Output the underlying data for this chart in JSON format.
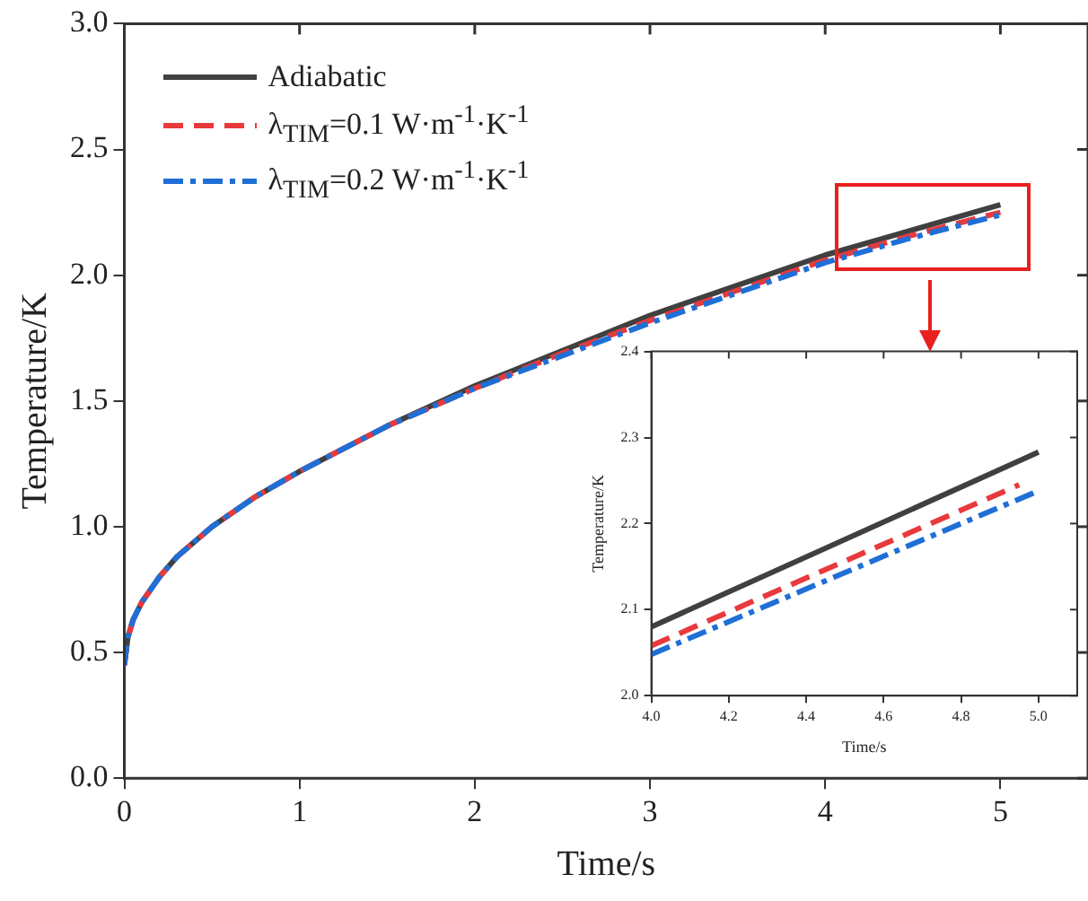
{
  "chart_data": [
    {
      "type": "line",
      "xlabel": "Time/s",
      "ylabel": "Temperature/K",
      "xlim": [
        0,
        5.5
      ],
      "xticks": [
        0,
        1,
        2,
        3,
        4,
        5
      ],
      "ylim": [
        0,
        3
      ],
      "yticks": [
        {
          "value": 0,
          "label": "0.0"
        },
        {
          "value": 0.5,
          "label": "0.5"
        },
        {
          "value": 1,
          "label": "1.0"
        },
        {
          "value": 1.5,
          "label": "1.5"
        },
        {
          "value": 2,
          "label": "2.0"
        },
        {
          "value": 2.5,
          "label": "2.5"
        },
        {
          "value": 3,
          "label": "3.0"
        }
      ],
      "legend": "top left",
      "marker": "none",
      "x": [
        0,
        0.02,
        0.05,
        0.1,
        0.2,
        0.3,
        0.5,
        0.75,
        1,
        1.5,
        2,
        2.5,
        3,
        3.5,
        4,
        4.5,
        5
      ],
      "series": [
        {
          "name": "Adiabatic",
          "color": "#404040",
          "line_style": "solid",
          "values": [
            0.45,
            0.56,
            0.63,
            0.7,
            0.8,
            0.88,
            1.0,
            1.12,
            1.22,
            1.4,
            1.56,
            1.7,
            1.84,
            1.96,
            2.08,
            2.18,
            2.28
          ]
        },
        {
          "name": "λ$_{TIM}$=0.1 W·m$^{-1}$·K$^{-1}$",
          "color": "#e8393c",
          "line_style": "dashed",
          "values": [
            0.45,
            0.56,
            0.63,
            0.7,
            0.8,
            0.88,
            1.0,
            1.12,
            1.22,
            1.4,
            1.55,
            1.69,
            1.82,
            1.94,
            2.06,
            2.16,
            2.25
          ]
        },
        {
          "name": "λ$_{TIM}$=0.2 W·m$^{-1}$·K$^{-1}$",
          "color": "#1f6fd6",
          "line_style": "dashdot",
          "values": [
            0.45,
            0.56,
            0.63,
            0.7,
            0.8,
            0.88,
            1.0,
            1.12,
            1.22,
            1.4,
            1.55,
            1.68,
            1.81,
            1.93,
            2.05,
            2.15,
            2.24
          ]
        }
      ]
    },
    {
      "type": "line",
      "xlabel": "Time/s",
      "ylabel": "Temperature/K",
      "xlim": [
        4,
        5.1
      ],
      "xticks": [
        {
          "value": 4,
          "label": "4.0"
        },
        {
          "value": 4.2,
          "label": "4.2"
        },
        {
          "value": 4.4,
          "label": "4.4"
        },
        {
          "value": 4.6,
          "label": "4.6"
        },
        {
          "value": 4.8,
          "label": "4.8"
        },
        {
          "value": 5,
          "label": "5.0"
        }
      ],
      "ylim": [
        2,
        2.4
      ],
      "yticks": [
        {
          "value": 2,
          "label": "2.0"
        },
        {
          "value": 2.1,
          "label": "2.1"
        },
        {
          "value": 2.2,
          "label": "2.2"
        },
        {
          "value": 2.3,
          "label": "2.3"
        },
        {
          "value": 2.4,
          "label": "2.4"
        }
      ],
      "marker": "none",
      "series": [
        {
          "color": "#404040",
          "line_style": "solid",
          "x": [
            4,
            5
          ],
          "values": [
            2.08,
            2.283
          ]
        },
        {
          "color": "#e8393c",
          "line_style": "dashed",
          "x": [
            4,
            4.95
          ],
          "values": [
            2.058,
            2.245
          ]
        },
        {
          "color": "#1f6fd6",
          "line_style": "dashdot",
          "x": [
            4,
            5
          ],
          "values": [
            2.048,
            2.238
          ]
        }
      ]
    }
  ]
}
